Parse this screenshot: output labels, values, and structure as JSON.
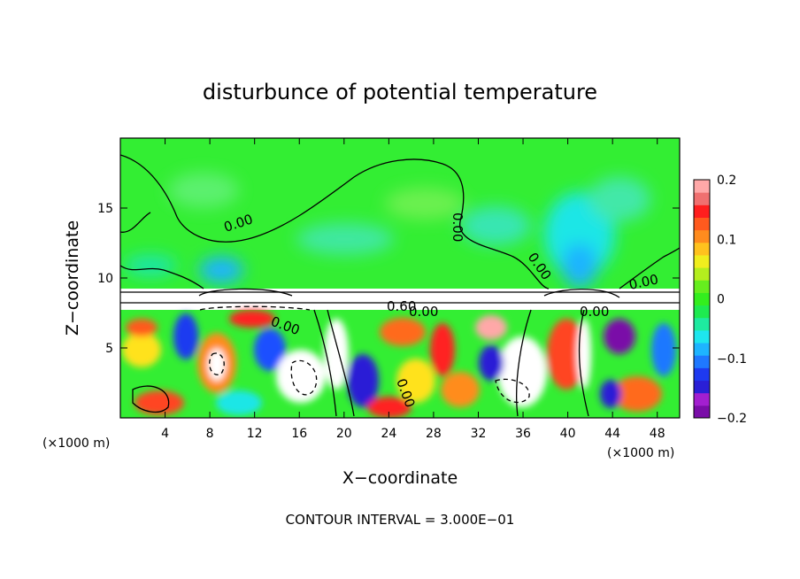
{
  "chart_data": {
    "type": "heatmap",
    "title": "disturbunce of potential temperature",
    "xlabel": "X−coordinate",
    "ylabel": "Z−coordinate",
    "x_unit_left": "(×1000 m)",
    "x_unit_right": "(×1000 m)",
    "xlim": [
      0,
      50
    ],
    "ylim": [
      0,
      20
    ],
    "x_ticks": [
      "4",
      "8",
      "12",
      "16",
      "20",
      "24",
      "28",
      "32",
      "36",
      "40",
      "44",
      "48"
    ],
    "y_ticks": [
      "5",
      "10",
      "15"
    ],
    "colorbar": {
      "range": [
        -0.2,
        0.2
      ],
      "ticks": [
        "0.2",
        "0.1",
        "0",
        "−0.1",
        "−0.2"
      ],
      "colors": [
        "#7a0da8",
        "#a31fd0",
        "#2a1fd6",
        "#1e3af0",
        "#1f78ff",
        "#1eb4ff",
        "#1ee6ee",
        "#1eeaa0",
        "#1eea50",
        "#33ee1e",
        "#66ee1e",
        "#b4ee1e",
        "#f0ee1e",
        "#ffc21e",
        "#ff8c1e",
        "#ff5a1e",
        "#ff1e1e",
        "#f07070",
        "#ffa8a8"
      ]
    },
    "contour_labels": [
      "0.00",
      "0.00",
      "0.00",
      "0.00",
      "0.00",
      "0.00",
      "0.00",
      "0.60",
      "0.00",
      "0.00",
      "0.00"
    ],
    "footer": "CONTOUR INTERVAL = 3.000E−01"
  }
}
